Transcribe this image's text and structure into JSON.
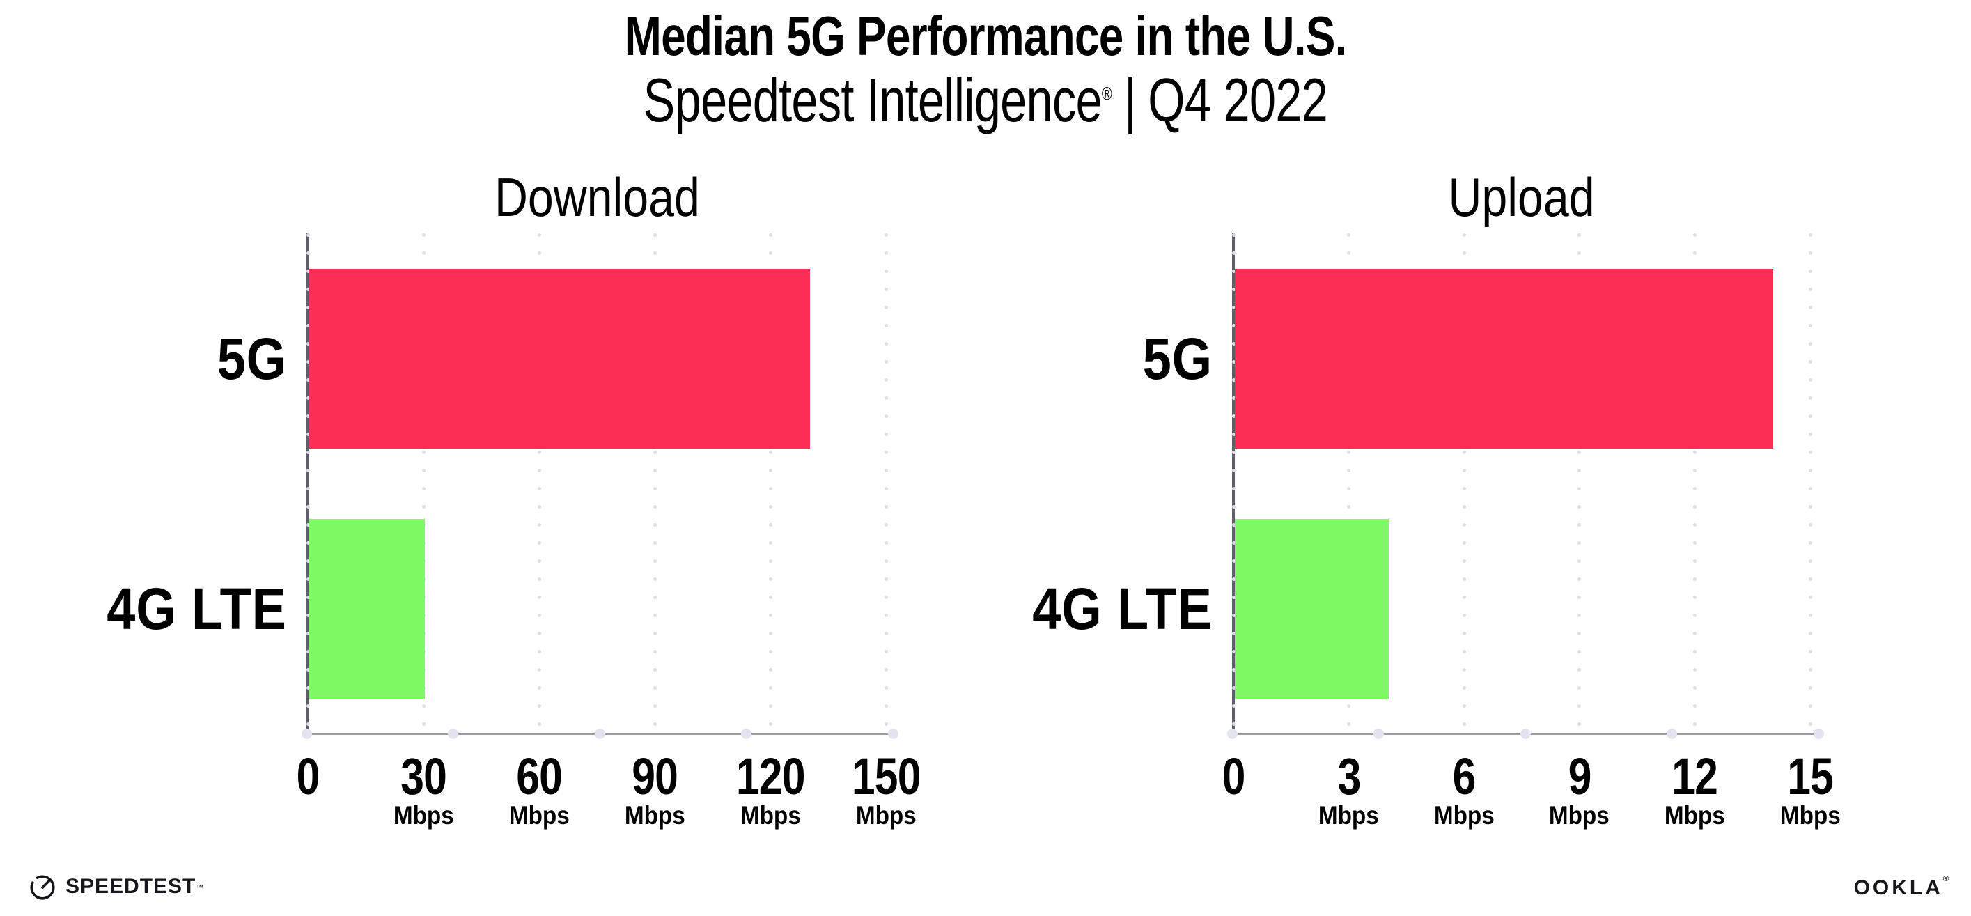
{
  "header": {
    "title": "Median 5G Performance in the U.S.",
    "subtitle_product": "Speedtest Intelligence",
    "subtitle_reg": "®",
    "subtitle_divider": "|",
    "subtitle_period": "Q4 2022"
  },
  "chart_data": [
    {
      "type": "bar",
      "orientation": "horizontal",
      "title": "Download",
      "categories": [
        "5G",
        "4G LTE"
      ],
      "values": [
        130,
        30
      ],
      "unit": "Mbps",
      "xlim": [
        0,
        150
      ],
      "xticks": [
        0,
        30,
        60,
        90,
        120,
        150
      ],
      "bar_colors": [
        "#fe2d56",
        "#7ffa66"
      ],
      "grid": "dotted-vertical",
      "legend": "none"
    },
    {
      "type": "bar",
      "orientation": "horizontal",
      "title": "Upload",
      "categories": [
        "5G",
        "4G LTE"
      ],
      "values": [
        14,
        4
      ],
      "unit": "Mbps",
      "xlim": [
        0,
        15
      ],
      "xticks": [
        0,
        3,
        6,
        9,
        12,
        15
      ],
      "bar_colors": [
        "#fe2d56",
        "#7ffa66"
      ],
      "grid": "dotted-vertical",
      "legend": "none"
    }
  ],
  "colors": {
    "bar_5g": "#fe2d56",
    "bar_4g_lte": "#7ffa66",
    "x_axis": "#9b9ba3",
    "y_axis": "#5f5f6a",
    "gridline_dots": "#dedeea",
    "axis_node_dots": "#e4e4f0",
    "text": "#000000",
    "background": "#ffffff"
  },
  "footer": {
    "speedtest": "SPEEDTEST",
    "speedtest_mark": "™",
    "ookla": "OOKLA",
    "ookla_mark": "®",
    "gauge_icon": "speedtest-gauge"
  }
}
